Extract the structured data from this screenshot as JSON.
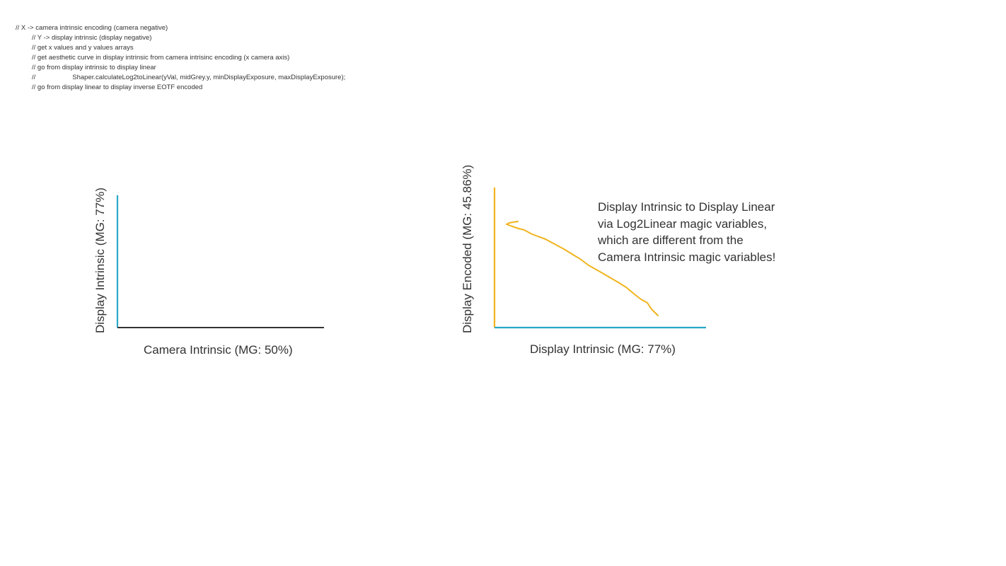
{
  "comments": [
    "// X -> camera intrinsic encoding (camera negative)",
    "// Y -> display intrinsic (display negative)",
    "// get x values and y values arrays",
    "// get aesthetic curve in display intrinsic from camera intrisinc encoding (x camera axis)",
    "// go from display intrinsic to display linear",
    "//",
    "Shaper.calculateLog2toLinear(yVal, midGrey.y, minDisplayExposure, maxDisplayExposure);",
    "// go from display linear to display inverse EOTF encoded"
  ],
  "left_plot": {
    "x_label": "Camera Intrinsic (MG: 50%)",
    "y_label": "Display Intrinsic (MG: 77%)"
  },
  "right_plot": {
    "x_label": "Display Intrinsic (MG: 77%)",
    "y_label": "Display Encoded (MG: 45.86%)"
  },
  "annotation": {
    "lines": [
      "Display Intrinsic to Display Linear",
      "via Log2Linear magic variables,",
      "which are different from the",
      "Camera Intrinsic magic variables!"
    ]
  },
  "colors": {
    "axis_teal": "#29a8c8",
    "axis_dark": "#333333",
    "curve_orange": "#f0b41e"
  }
}
